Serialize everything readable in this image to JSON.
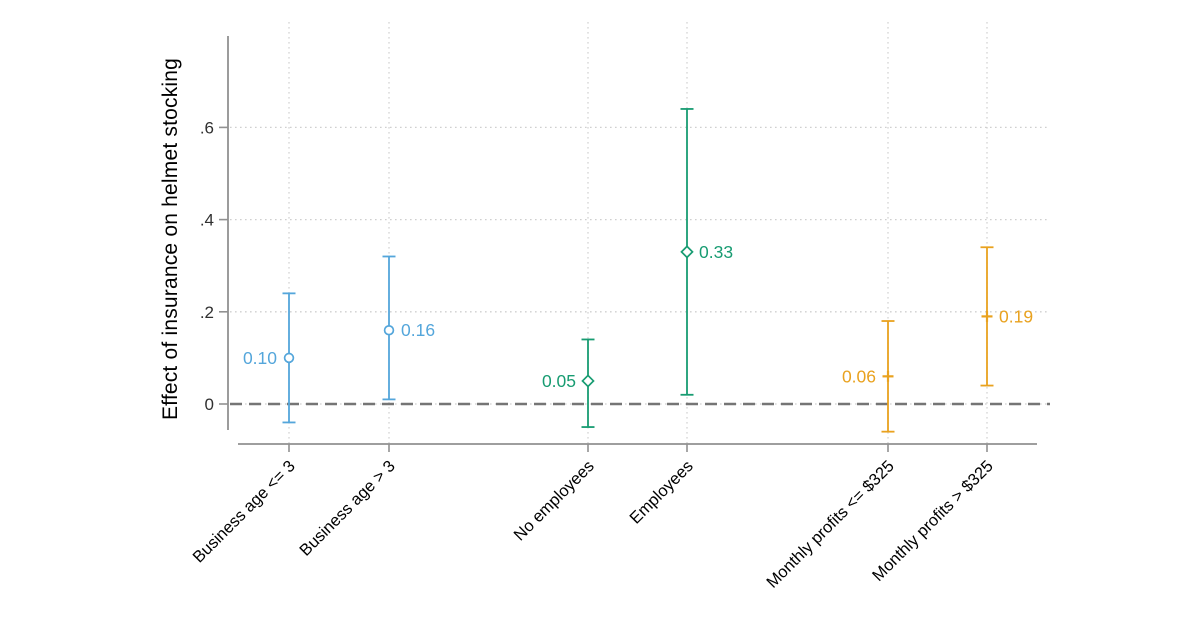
{
  "chart_data": {
    "type": "scatter",
    "variant": "coefficient-plot-with-confidence-intervals",
    "title": "",
    "xlabel": "",
    "ylabel": "Effect of insurance on helmet stocking",
    "ylim": [
      -0.09,
      0.8
    ],
    "grid": "dotted",
    "legend_position": "none",
    "yticks": [
      {
        "value": 0,
        "label": "0"
      },
      {
        "value": 0.2,
        "label": ".2"
      },
      {
        "value": 0.4,
        "label": ".4"
      },
      {
        "value": 0.6,
        "label": ".6"
      }
    ],
    "reference_line": {
      "value": 0,
      "style": "dashed"
    },
    "categories": [
      "Business age <= 3",
      "Business age > 3",
      "No employees",
      "Employees",
      "Monthly profits <= $325",
      "Monthly profits > $325"
    ],
    "series": [
      {
        "name": "Business age",
        "marker": "circle",
        "color": "#54A6DB",
        "points": [
          {
            "category": "Business age <= 3",
            "estimate": 0.1,
            "label": "0.10",
            "ci_low": -0.04,
            "ci_high": 0.24,
            "label_side": "left"
          },
          {
            "category": "Business age > 3",
            "estimate": 0.16,
            "label": "0.16",
            "ci_low": 0.01,
            "ci_high": 0.32,
            "label_side": "right"
          }
        ]
      },
      {
        "name": "Employees",
        "marker": "diamond",
        "color": "#189C72",
        "points": [
          {
            "category": "No employees",
            "estimate": 0.05,
            "label": "0.05",
            "ci_low": -0.05,
            "ci_high": 0.14,
            "label_side": "left"
          },
          {
            "category": "Employees",
            "estimate": 0.33,
            "label": "0.33",
            "ci_low": 0.02,
            "ci_high": 0.64,
            "label_side": "right"
          }
        ]
      },
      {
        "name": "Monthly profits",
        "marker": "plus",
        "color": "#E9A21F",
        "points": [
          {
            "category": "Monthly profits <= $325",
            "estimate": 0.06,
            "label": "0.06",
            "ci_low": -0.06,
            "ci_high": 0.18,
            "label_side": "left"
          },
          {
            "category": "Monthly profits > $325",
            "estimate": 0.19,
            "label": "0.19",
            "ci_low": 0.04,
            "ci_high": 0.34,
            "label_side": "right"
          }
        ]
      }
    ],
    "colors": {
      "axis": "#919191",
      "grid": "#cfcfcf",
      "reference_line": "#757575",
      "y_tick_label": "#303030",
      "category_label": "#000000",
      "background": "#ffffff"
    }
  }
}
